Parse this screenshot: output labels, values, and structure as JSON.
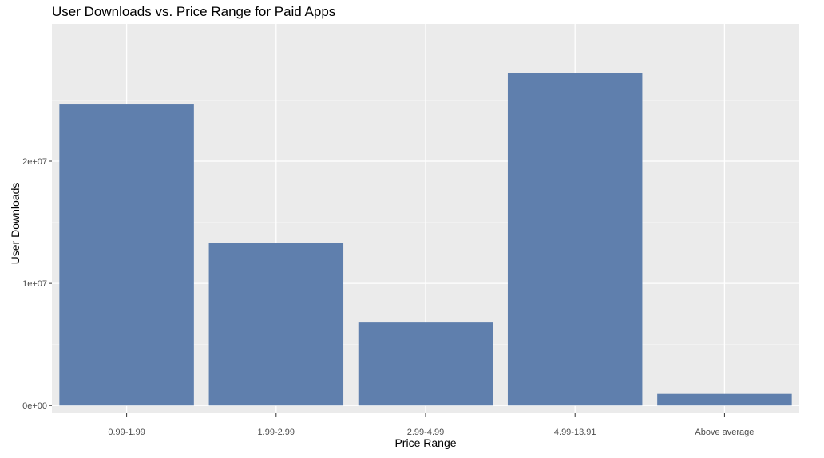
{
  "chart_data": {
    "type": "bar",
    "title": "User Downloads vs. Price Range for Paid Apps",
    "xlabel": "Price Range",
    "ylabel": "User Downloads",
    "categories": [
      "0.99-1.99",
      "1.99-2.99",
      "2.99-4.99",
      "4.99-13.91",
      "Above average"
    ],
    "values": [
      24700000,
      13300000,
      6800000,
      27200000,
      950000
    ],
    "ylim": [
      0,
      29800000
    ],
    "yticks": [
      0,
      10000000,
      20000000
    ],
    "ytick_labels": [
      "0e+00",
      "1e+07",
      "2e+07"
    ],
    "bar_color": "#5f7fad",
    "panel_background": "#ebebeb",
    "grid": true,
    "legend": "none"
  }
}
